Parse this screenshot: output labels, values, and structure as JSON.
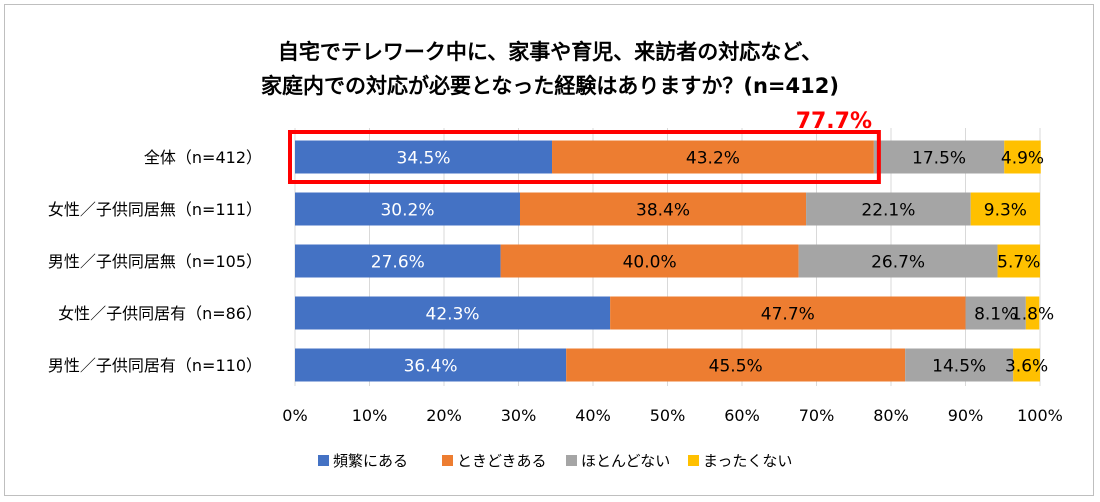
{
  "chart_data": {
    "type": "bar",
    "orientation": "horizontal",
    "stacked": true,
    "title_lines": [
      "自宅でテレワーク中に、家事や育児、来訪者の対応など、",
      "家庭内での対応が必要となった経験はありますか？(n=412)"
    ],
    "categories": [
      "全体（n=412）",
      "女性／子供同居無（n=111）",
      "男性／子供同居無（n=105）",
      "女性／子供同居有（n=86）",
      "男性／子供同居有（n=110）"
    ],
    "series": [
      {
        "name": "頻繁にある",
        "color": "#4472c4",
        "label_color": "#ffffff",
        "values": [
          34.5,
          30.2,
          27.6,
          42.3,
          36.4
        ]
      },
      {
        "name": "ときどきある",
        "color": "#ed7d31",
        "label_color": "#000000",
        "values": [
          43.2,
          38.4,
          40.0,
          47.7,
          45.5
        ]
      },
      {
        "name": "ほとんどない",
        "color": "#a5a5a5",
        "label_color": "#000000",
        "values": [
          17.5,
          22.1,
          26.7,
          8.1,
          14.5
        ]
      },
      {
        "name": "まったくない",
        "color": "#ffc000",
        "label_color": "#000000",
        "values": [
          4.9,
          9.3,
          5.7,
          1.8,
          3.6
        ]
      }
    ],
    "xlim": [
      0,
      100
    ],
    "xticks": [
      "0%",
      "10%",
      "20%",
      "30%",
      "40%",
      "50%",
      "60%",
      "70%",
      "80%",
      "90%",
      "100%"
    ],
    "grid": true,
    "legend_position": "bottom",
    "highlight": {
      "category_index": 0,
      "label": "77.7%",
      "color": "#ff0000"
    }
  }
}
